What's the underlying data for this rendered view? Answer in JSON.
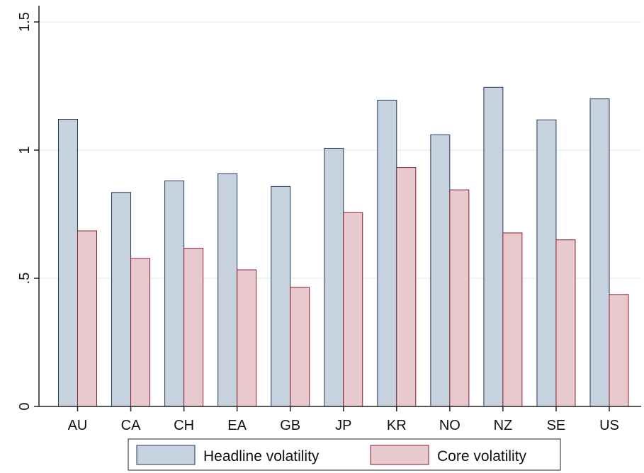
{
  "chart_data": {
    "type": "bar",
    "title": "",
    "xlabel": "",
    "ylabel": "",
    "categories": [
      "AU",
      "CA",
      "CH",
      "EA",
      "GB",
      "JP",
      "KR",
      "NO",
      "NZ",
      "SE",
      "US"
    ],
    "series": [
      {
        "name": "Headline volatility",
        "color": "#c6d3de",
        "stroke": "#223a5e",
        "values": [
          1.12,
          0.835,
          0.88,
          0.908,
          0.858,
          1.007,
          1.195,
          1.06,
          1.245,
          1.118,
          1.2
        ]
      },
      {
        "name": "Core volatility",
        "color": "#e8c9ce",
        "stroke": "#8a1e32",
        "values": [
          0.685,
          0.577,
          0.617,
          0.533,
          0.465,
          0.756,
          0.932,
          0.845,
          0.677,
          0.65,
          0.437
        ]
      }
    ],
    "ylim": [
      0,
      1.5
    ],
    "yticks": [
      {
        "value": 0,
        "label": "0"
      },
      {
        "value": 0.5,
        "label": ".5"
      },
      {
        "value": 1,
        "label": "1"
      },
      {
        "value": 1.5,
        "label": "1.5"
      }
    ],
    "grid": true,
    "legend_position": "bottom"
  }
}
